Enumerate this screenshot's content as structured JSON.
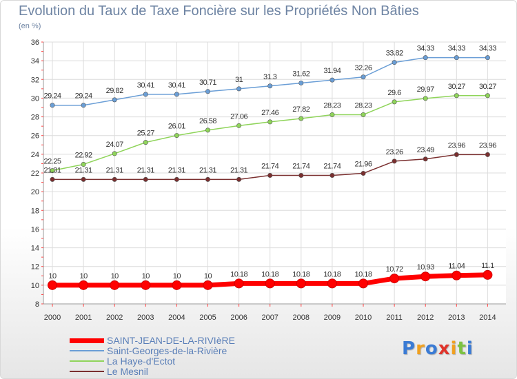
{
  "title": "Evolution du Taux de Taxe Foncière sur les Propriétés Non Bâties",
  "unit_label": "(en %)",
  "logo": {
    "text": "Proxiti",
    "letters": [
      {
        "ch": "P",
        "color": "#3a7bd5"
      },
      {
        "ch": "r",
        "color": "#f0a020"
      },
      {
        "ch": "o",
        "color": "#3a7bd5"
      },
      {
        "ch": "x",
        "color": "#e0342b"
      },
      {
        "ch": "i",
        "color": "#f0a020"
      },
      {
        "ch": "t",
        "color": "#7cc242"
      },
      {
        "ch": "i",
        "color": "#3a7bd5"
      }
    ]
  },
  "chart_data": {
    "type": "line",
    "x": [
      "2000",
      "2001",
      "2002",
      "2003",
      "2004",
      "2005",
      "2006",
      "2007",
      "2008",
      "2009",
      "2010",
      "2011",
      "2012",
      "2013",
      "2014"
    ],
    "ylim": [
      8,
      36
    ],
    "yticks": [
      8,
      10,
      12,
      14,
      16,
      18,
      20,
      22,
      24,
      26,
      28,
      30,
      32,
      34,
      36
    ],
    "grid": true,
    "legend_position": "bottom-left",
    "series": [
      {
        "name": "SAINT-JEAN-DE-LA-RIVIèRE",
        "color": "#ff0000",
        "width": 7,
        "labels": [
          "10",
          "10",
          "10",
          "10",
          "10",
          "10",
          "10.18",
          "10.18",
          "10.18",
          "10.18",
          "10.18",
          "10.72",
          "10.93",
          "11.04",
          "11.1"
        ],
        "values": [
          10,
          10,
          10,
          10,
          10,
          10,
          10.18,
          10.18,
          10.18,
          10.18,
          10.18,
          10.72,
          10.93,
          11.04,
          11.1
        ]
      },
      {
        "name": "Saint-Georges-de-la-Rivière",
        "color": "#6a9ed6",
        "width": 1.5,
        "labels": [
          "29.24",
          "29.24",
          "29.82",
          "30.41",
          "30.41",
          "30.71",
          "31",
          "31.3",
          "31.62",
          "31.94",
          "32.26",
          "33.82",
          "34.33",
          "34.33",
          "34.33"
        ],
        "values": [
          29.24,
          29.24,
          29.82,
          30.41,
          30.41,
          30.71,
          31,
          31.3,
          31.62,
          31.94,
          32.26,
          33.82,
          34.33,
          34.33,
          34.33
        ]
      },
      {
        "name": "La Haye-d'Ectot",
        "color": "#8fd45a",
        "width": 1.5,
        "labels": [
          "22.25",
          "22.92",
          "24.07",
          "25.27",
          "26.01",
          "26.58",
          "27.06",
          "27.46",
          "27.82",
          "28.23",
          "28.23",
          "29.6",
          "29.97",
          "30.27",
          "30.27"
        ],
        "values": [
          22.25,
          22.92,
          24.07,
          25.27,
          26.01,
          26.58,
          27.06,
          27.46,
          27.82,
          28.23,
          28.23,
          29.6,
          29.97,
          30.27,
          30.27
        ]
      },
      {
        "name": "Le Mesnil",
        "color": "#7a2f2f",
        "width": 1.5,
        "labels": [
          "21.31",
          "21.31",
          "21.31",
          "21.31",
          "21.31",
          "21.31",
          "21.31",
          "21.74",
          "21.74",
          "21.74",
          "21.96",
          "23.26",
          "23.49",
          "23.96",
          "23.96"
        ],
        "values": [
          21.31,
          21.31,
          21.31,
          21.31,
          21.31,
          21.31,
          21.31,
          21.74,
          21.74,
          21.74,
          21.96,
          23.26,
          23.49,
          23.96,
          23.96
        ]
      }
    ]
  }
}
